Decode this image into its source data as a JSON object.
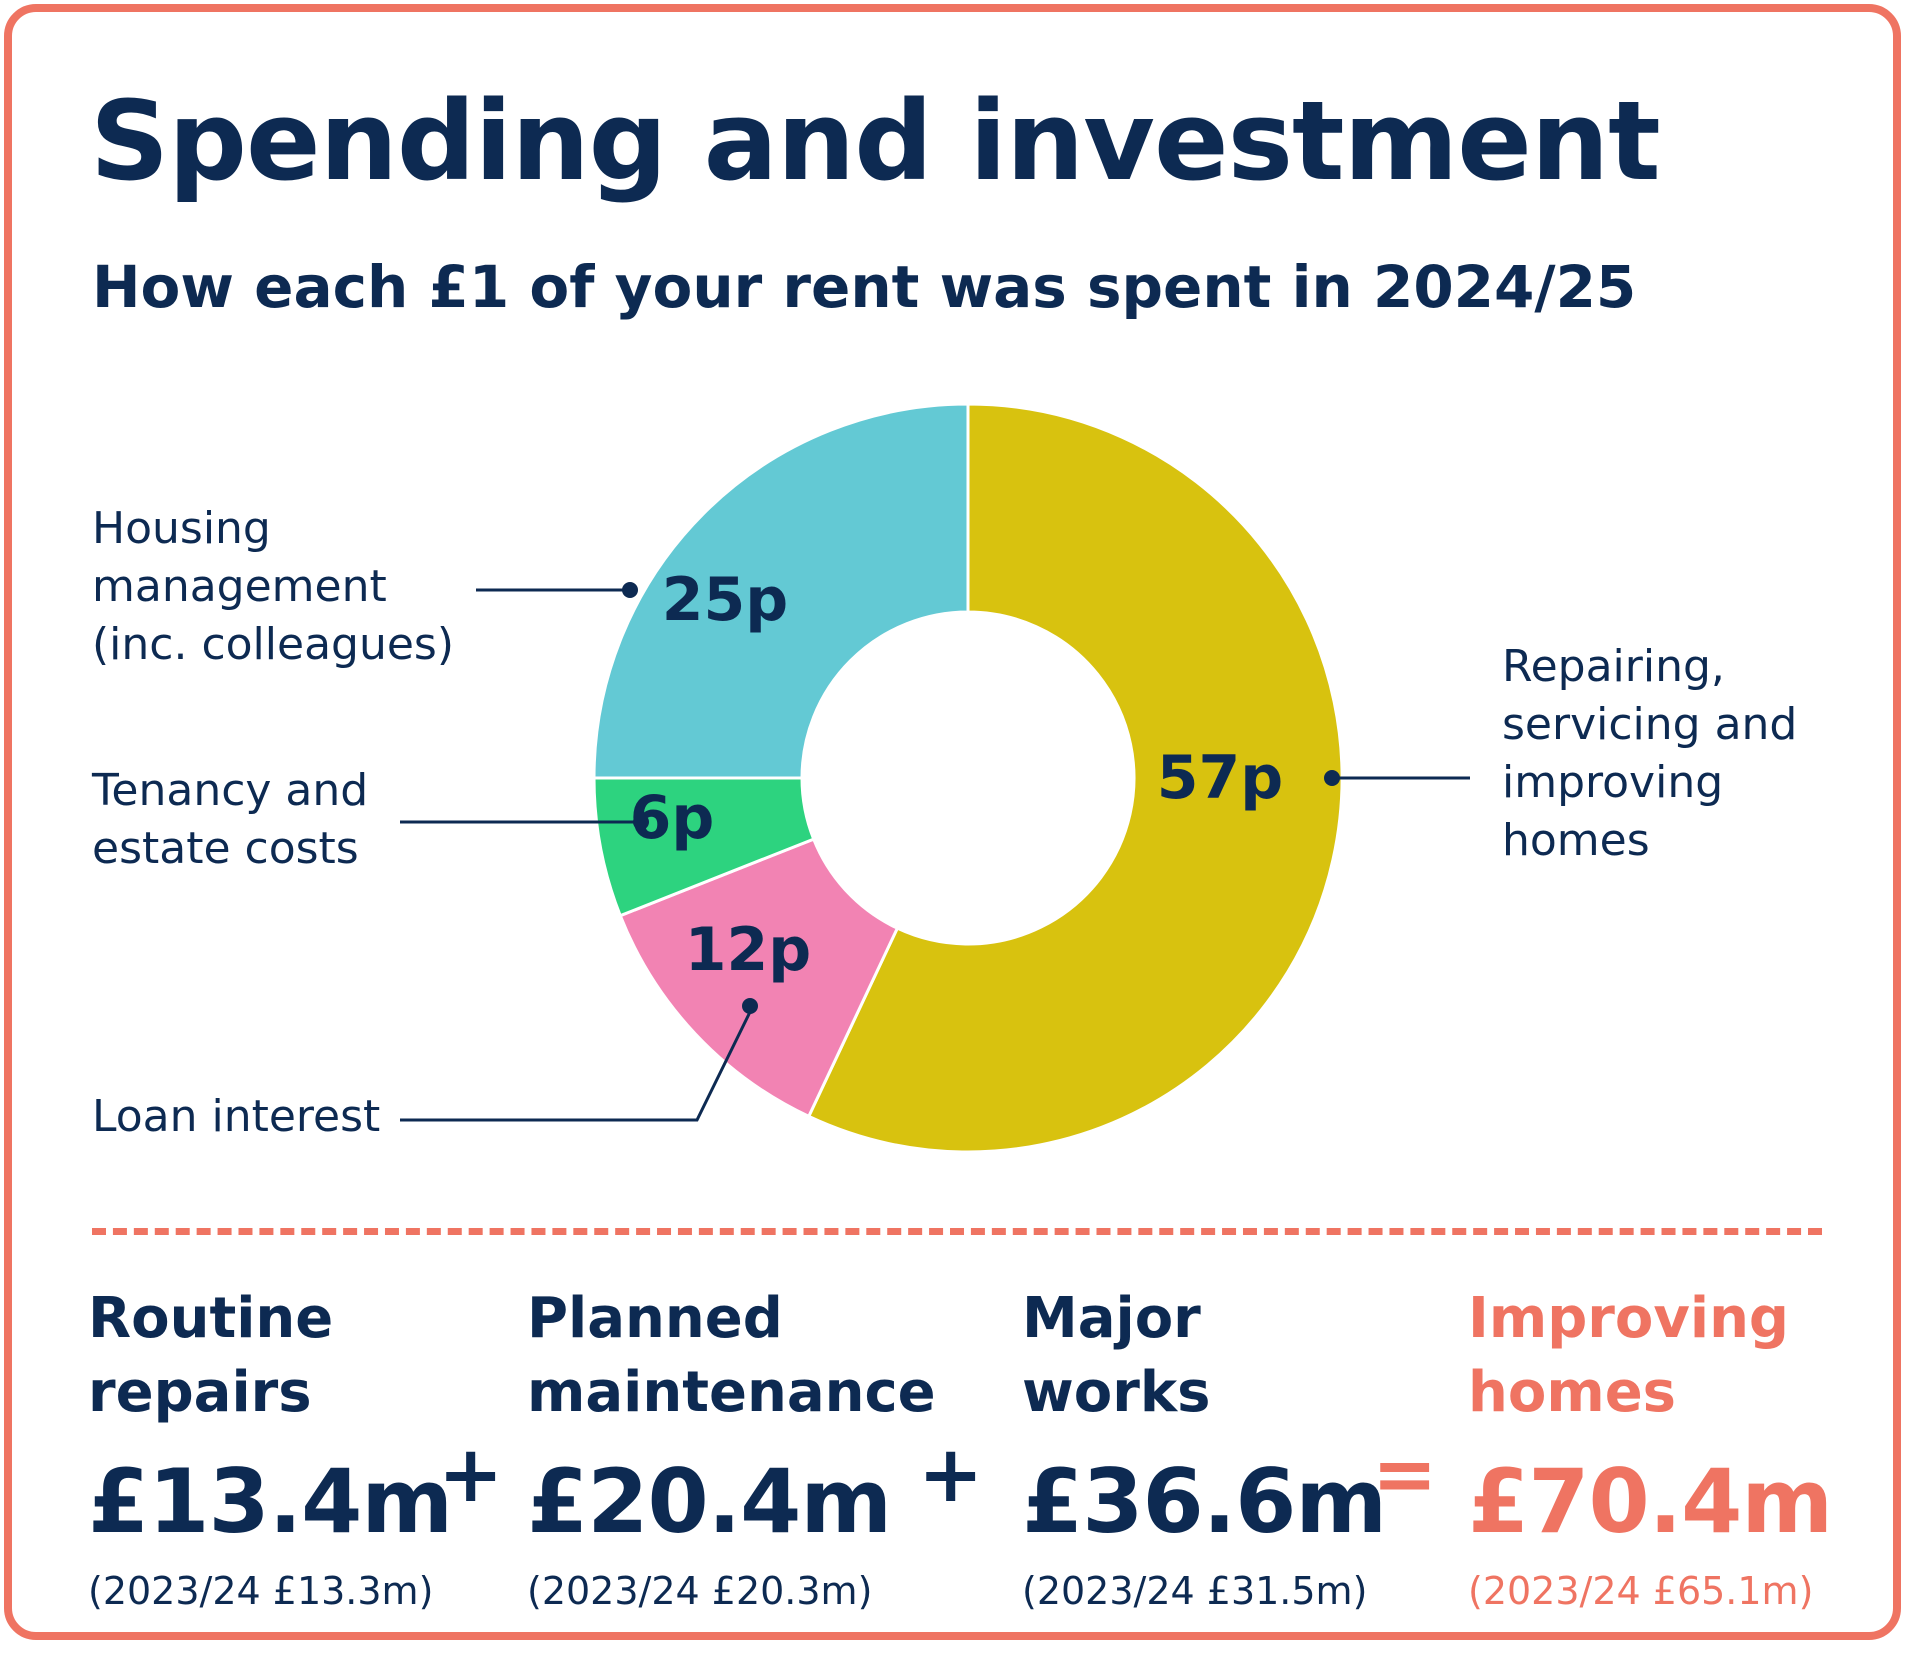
{
  "colors": {
    "navy": "#0d2a52",
    "coral": "#ef7462",
    "mustard": "#d8c20f",
    "teal": "#63c9d4",
    "green": "#2dd37f",
    "pink": "#f283b3"
  },
  "title": "Spending and investment",
  "subtitle": "How each £1 of your rent was spent in 2024/25",
  "chart_data": {
    "type": "pie",
    "style": "donut",
    "title": "How each £1 of your rent was spent in 2024/25",
    "unit": "p",
    "slices": [
      {
        "label": [
          "Repairing,",
          "servicing and",
          "improving",
          "homes"
        ],
        "value": 57,
        "value_label": "57p",
        "color": "#d8c20f"
      },
      {
        "label": [
          "Loan interest"
        ],
        "value": 12,
        "value_label": "12p",
        "color": "#f283b3"
      },
      {
        "label": [
          "Tenancy and",
          "estate costs"
        ],
        "value": 6,
        "value_label": "6p",
        "color": "#2dd37f"
      },
      {
        "label": [
          "Housing",
          "management",
          "(inc. colleagues)"
        ],
        "value": 25,
        "value_label": "25p",
        "color": "#63c9d4"
      }
    ]
  },
  "summary": {
    "routine": {
      "name": [
        "Routine",
        "repairs"
      ],
      "value": "£13.4m",
      "previous": "(2023/24 £13.3m)"
    },
    "planned": {
      "name": [
        "Planned",
        "maintenance"
      ],
      "value": "£20.4m",
      "previous": "(2023/24 £20.3m)"
    },
    "major": {
      "name": [
        "Major",
        "works"
      ],
      "value": "£36.6m",
      "previous": "(2023/24 £31.5m)"
    },
    "total": {
      "name": [
        "Improving",
        "homes"
      ],
      "value": "£70.4m",
      "previous": "(2023/24 £65.1m)"
    },
    "plus_symbol": "+",
    "equals_symbol": "="
  }
}
